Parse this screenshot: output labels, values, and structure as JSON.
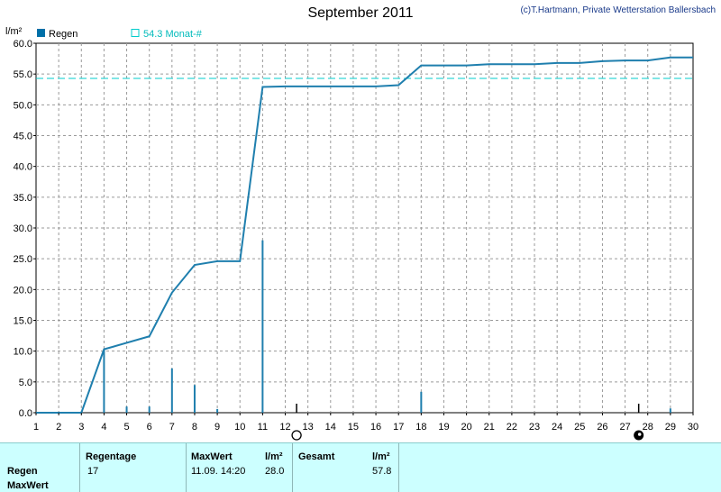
{
  "header": {
    "title": "September 2011",
    "copyright": "(c)T.Hartmann, Private Wetterstation Ballersbach"
  },
  "chart_data": {
    "type": "bar",
    "ylabel": "l/m²",
    "ylim": [
      0,
      60
    ],
    "yticks": [
      "0.0",
      "5.0",
      "10.0",
      "15.0",
      "20.0",
      "25.0",
      "30.0",
      "35.0",
      "40.0",
      "45.0",
      "50.0",
      "55.0",
      "60.0"
    ],
    "xlim": [
      1,
      30
    ],
    "xticks": [
      "1",
      "2",
      "3",
      "4",
      "5",
      "6",
      "7",
      "8",
      "9",
      "10",
      "11",
      "12",
      "13",
      "14",
      "15",
      "16",
      "17",
      "18",
      "19",
      "20",
      "21",
      "22",
      "23",
      "24",
      "25",
      "26",
      "27",
      "28",
      "29",
      "30"
    ],
    "grid": true,
    "legend": [
      {
        "label": "Regen",
        "color": "#0070a8",
        "marker": "filled-square"
      },
      {
        "label": "54.3 Monat-#",
        "color": "#00cccc",
        "marker": "open-square"
      }
    ],
    "daily_bars": {
      "name": "Regen",
      "color": "#1f7fae",
      "x": [
        4,
        5,
        6,
        7,
        8,
        9,
        11,
        18,
        29
      ],
      "values": [
        10.3,
        1.0,
        1.0,
        7.2,
        4.5,
        0.6,
        28.0,
        3.4,
        0.7
      ]
    },
    "cumulative_line": {
      "color": "#1f7fae",
      "x": [
        1,
        3,
        4,
        6,
        7,
        8,
        9,
        10,
        11,
        12,
        16,
        17,
        18,
        20,
        21,
        23,
        24,
        25,
        26,
        27,
        28,
        29,
        30
      ],
      "y": [
        0,
        0,
        10.3,
        12.4,
        19.5,
        24.0,
        24.6,
        24.6,
        52.9,
        53.0,
        53.0,
        53.2,
        56.4,
        56.4,
        56.6,
        56.6,
        56.8,
        56.8,
        57.1,
        57.2,
        57.2,
        57.7,
        57.7
      ]
    },
    "mean_line": {
      "value": 54.3,
      "color": "#00cccc"
    },
    "moon_phases": [
      {
        "x": 12.5,
        "phase": "full-moon"
      },
      {
        "x": 27.6,
        "phase": "new-moon"
      }
    ]
  },
  "table": {
    "row_labels": [
      "Regen",
      "MaxWert"
    ],
    "regentage": {
      "header": "Regentage",
      "value": "17"
    },
    "maxwert": {
      "header": "MaxWert",
      "unit": "l/m²",
      "date": "11.09.  14:20",
      "value": "28.0"
    },
    "gesamt": {
      "header": "Gesamt",
      "unit": "l/m²",
      "value": "57.8"
    }
  }
}
